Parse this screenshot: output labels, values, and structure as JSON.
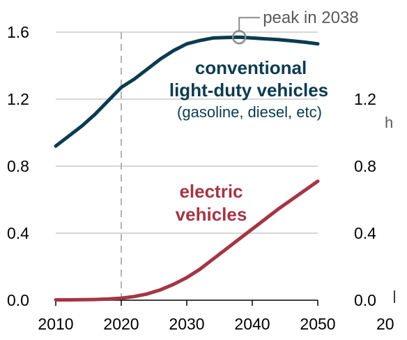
{
  "chart_data": {
    "type": "line",
    "title": "",
    "xlabel": "",
    "ylabel": "",
    "xlim": [
      2010,
      2050
    ],
    "ylim": [
      0,
      1.6
    ],
    "grid": "horizontal",
    "x_ticks": [
      "2010",
      "2020",
      "2030",
      "2040",
      "2050"
    ],
    "y_ticks": [
      "0.0",
      "0.4",
      "0.8",
      "1.2",
      "1.6"
    ],
    "reference_line": {
      "x": 2020,
      "style": "dashed"
    },
    "series": [
      {
        "name": "conventional light-duty vehicles",
        "note": "(gasoline, diesel, etc)",
        "label_lines": [
          "conventional",
          "light-duty vehicles"
        ],
        "color": "#0b3b4f",
        "x": [
          2010,
          2012,
          2014,
          2016,
          2018,
          2020,
          2022,
          2024,
          2026,
          2028,
          2030,
          2032,
          2034,
          2036,
          2038,
          2040,
          2042,
          2044,
          2046,
          2048,
          2050
        ],
        "y": [
          0.92,
          0.98,
          1.04,
          1.11,
          1.19,
          1.27,
          1.32,
          1.38,
          1.44,
          1.49,
          1.53,
          1.55,
          1.565,
          1.568,
          1.57,
          1.565,
          1.56,
          1.555,
          1.548,
          1.54,
          1.53
        ]
      },
      {
        "name": "electric vehicles",
        "label_lines": [
          "electric",
          "vehicles"
        ],
        "color": "#a23645",
        "x": [
          2010,
          2012,
          2014,
          2016,
          2018,
          2020,
          2022,
          2024,
          2026,
          2028,
          2030,
          2032,
          2034,
          2036,
          2038,
          2040,
          2042,
          2044,
          2046,
          2048,
          2050
        ],
        "y": [
          0.002,
          0.002,
          0.003,
          0.004,
          0.007,
          0.012,
          0.022,
          0.038,
          0.062,
          0.095,
          0.135,
          0.185,
          0.245,
          0.305,
          0.365,
          0.425,
          0.485,
          0.545,
          0.6,
          0.655,
          0.71
        ]
      }
    ],
    "annotations": [
      {
        "text": "peak in 2038",
        "x": 2038,
        "y": 1.57,
        "marker": "circle"
      }
    ],
    "right_panel": {
      "y_ticks": [
        "0.0",
        "0.4",
        "0.8",
        "1.2"
      ],
      "x_tick_partial": "20",
      "label_partial": "h"
    }
  }
}
